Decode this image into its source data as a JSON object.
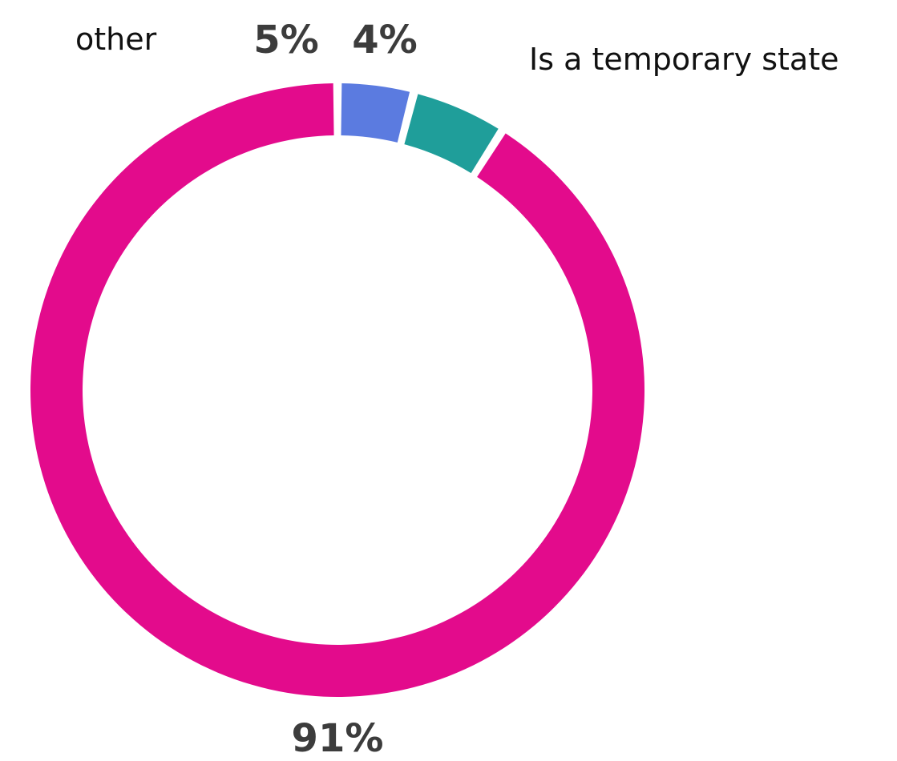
{
  "chart_data": {
    "type": "pie",
    "style": "donut",
    "categories": [
      "Is a temporary state",
      "other",
      ""
    ],
    "values": [
      4,
      5,
      91
    ],
    "value_labels": [
      "4%",
      "5%",
      "91%"
    ],
    "colors": [
      "#5b7be0",
      "#1f9e9a",
      "#e30b8c"
    ],
    "title": "",
    "legend": "none"
  }
}
